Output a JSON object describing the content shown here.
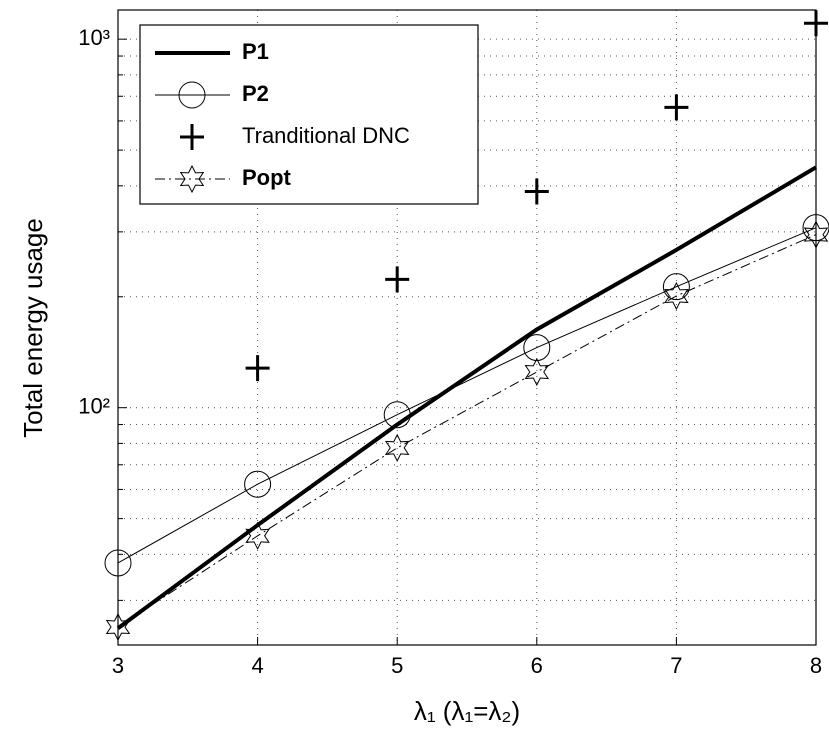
{
  "chart_data": {
    "type": "line",
    "x_label": "λ₁ (λ₁=λ₂)",
    "y_label": "Total energy usage",
    "x": [
      3,
      4,
      5,
      6,
      7,
      8
    ],
    "series": [
      {
        "name": "P1",
        "color": "#000000",
        "linestyle": "solid",
        "linewidth": 4,
        "marker": "none",
        "values": [
          25.2,
          48,
          90,
          163,
          268,
          449
        ]
      },
      {
        "name": "P2",
        "color": "#000000",
        "linestyle": "solid",
        "linewidth": 1,
        "marker": "circle",
        "values": [
          37.9,
          62,
          95.7,
          145.6,
          213,
          308
        ]
      },
      {
        "name": "Tranditional DNC",
        "color": "#000000",
        "linestyle": "none",
        "linewidth": 3,
        "marker": "plus",
        "values": [
          null,
          128,
          223,
          386,
          653,
          1105
        ]
      },
      {
        "name": "Popt",
        "color": "#000000",
        "linestyle": "dashdot",
        "linewidth": 1,
        "marker": "hexagram",
        "values": [
          25.4,
          44.9,
          77.8,
          125,
          201,
          295
        ]
      }
    ],
    "xlim": [
      3,
      8
    ],
    "xticks": [
      3,
      4,
      5,
      6,
      7,
      8
    ],
    "ylim": [
      22.7,
      1200
    ],
    "log_y": true,
    "yticks": [
      {
        "value": 100,
        "label": "10²"
      },
      {
        "value": 1000,
        "label": "10³"
      }
    ],
    "yminorticks": [
      30,
      40,
      50,
      60,
      70,
      80,
      90,
      200,
      300,
      400,
      500,
      600,
      700,
      800,
      900
    ],
    "grid": true,
    "legend": "upper left"
  }
}
